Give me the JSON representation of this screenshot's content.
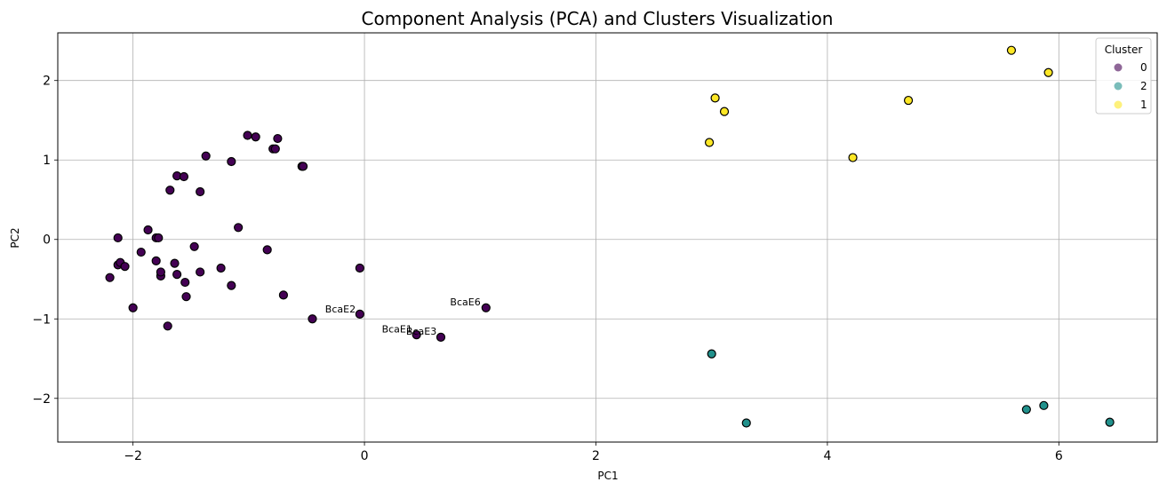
{
  "chart_data": {
    "type": "scatter",
    "title": "Component Analysis (PCA) and Clusters Visualization",
    "xlabel": "PC1",
    "ylabel": "PC2",
    "xlim": [
      -2.65,
      6.85
    ],
    "ylim": [
      -2.55,
      2.6
    ],
    "xticks": [
      -2,
      0,
      2,
      4,
      6
    ],
    "yticks": [
      -2,
      -1,
      0,
      1,
      2
    ],
    "grid": true,
    "legend": {
      "title": "Cluster",
      "placement": "top-right",
      "entries": [
        {
          "label": "0",
          "color": "#440154"
        },
        {
          "label": "2",
          "color": "#21918c"
        },
        {
          "label": "1",
          "color": "#fde725"
        }
      ]
    },
    "series": [
      {
        "cluster": "0",
        "color": "#440154",
        "x": [
          -2.2,
          -2.13,
          -2.13,
          -2.11,
          -2.07,
          -2.0,
          -1.93,
          -1.87,
          -1.8,
          -1.78,
          -1.76,
          -1.8,
          -1.76,
          -1.7,
          -1.68,
          -1.64,
          -1.62,
          -1.62,
          -1.56,
          -1.55,
          -1.54,
          -1.47,
          -1.42,
          -1.42,
          -1.37,
          -1.24,
          -1.15,
          -1.15,
          -1.09,
          -1.01,
          -0.94,
          -0.84,
          -0.79,
          -0.77,
          -0.75,
          -0.7,
          -0.54,
          -0.53,
          -0.45,
          -0.04,
          -0.04,
          0.45,
          0.66,
          1.05
        ],
        "y": [
          -0.48,
          0.02,
          -0.32,
          -0.29,
          -0.34,
          -0.86,
          -0.16,
          0.12,
          0.02,
          0.02,
          -0.46,
          -0.27,
          -0.41,
          -1.09,
          0.62,
          -0.3,
          -0.44,
          0.8,
          0.79,
          -0.54,
          -0.72,
          -0.09,
          0.6,
          -0.41,
          1.05,
          -0.36,
          0.98,
          -0.58,
          0.15,
          1.31,
          1.29,
          -0.13,
          1.14,
          1.14,
          1.27,
          -0.7,
          0.92,
          0.92,
          -1.0,
          -0.36,
          -0.94,
          -1.2,
          -1.23,
          -0.86
        ]
      },
      {
        "cluster": "2",
        "color": "#21918c",
        "x": [
          3.0,
          3.3,
          5.72,
          5.87,
          6.44
        ],
        "y": [
          -1.44,
          -2.31,
          -2.14,
          -2.09,
          -2.3
        ]
      },
      {
        "cluster": "1",
        "color": "#fde725",
        "x": [
          2.98,
          3.03,
          3.11,
          4.22,
          4.7,
          5.59,
          5.91
        ],
        "y": [
          1.22,
          1.78,
          1.61,
          1.03,
          1.75,
          2.38,
          2.1
        ]
      }
    ],
    "annotations": [
      {
        "text": "BcaE2",
        "x": -0.34,
        "y": -0.92
      },
      {
        "text": "BcaE1",
        "x": 0.15,
        "y": -1.17
      },
      {
        "text": "BcaE3",
        "x": 0.36,
        "y": -1.2
      },
      {
        "text": "BcaE6",
        "x": 0.74,
        "y": -0.83
      }
    ]
  }
}
